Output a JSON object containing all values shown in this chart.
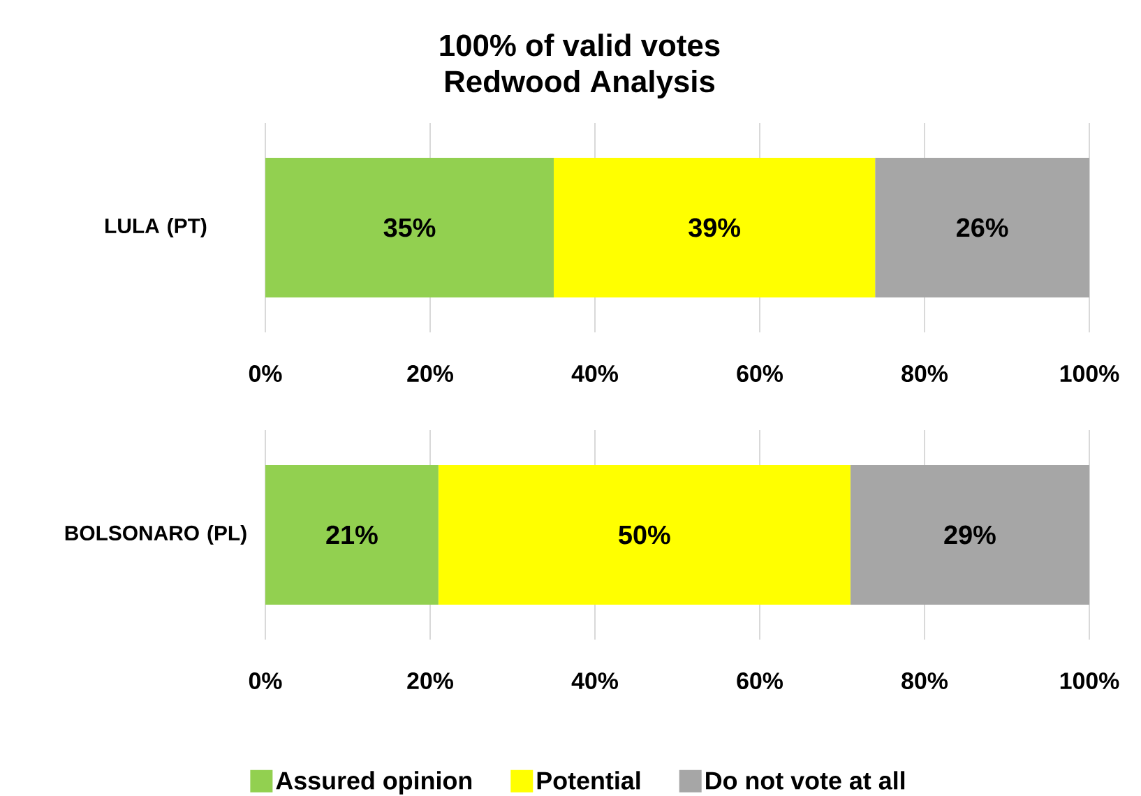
{
  "chart_data": [
    {
      "type": "bar",
      "orientation": "horizontal",
      "stacked": true,
      "title": "100% of valid votes",
      "subtitle": "Redwood Analysis",
      "categories": [
        "LULA (PT)"
      ],
      "series": [
        {
          "color": "#92d050",
          "values": [
            35
          ],
          "value_labels": [
            "35%"
          ]
        },
        {
          "color": "#ffff00",
          "values": [
            39
          ],
          "value_labels": [
            "39%"
          ]
        },
        {
          "color": "#a6a6a6",
          "values": [
            26
          ],
          "value_labels": [
            "26%"
          ]
        }
      ],
      "xlim": [
        0,
        100
      ],
      "xticks": [
        {
          "value": 0,
          "label": "0%"
        },
        {
          "value": 20,
          "label": "20%"
        },
        {
          "value": 40,
          "label": "40%"
        },
        {
          "value": 60,
          "label": "60%"
        },
        {
          "value": 80,
          "label": "80%"
        },
        {
          "value": 100,
          "label": "100%"
        }
      ],
      "grid": "x",
      "legend": false
    },
    {
      "type": "bar",
      "orientation": "horizontal",
      "stacked": true,
      "categories": [
        "BOLSONARO (PL)"
      ],
      "series": [
        {
          "name": "Assured opinion",
          "color": "#92d050",
          "values": [
            21
          ],
          "value_labels": [
            "21%"
          ]
        },
        {
          "name": "Potential",
          "color": "#ffff00",
          "values": [
            50
          ],
          "value_labels": [
            "50%"
          ]
        },
        {
          "name": "Do not vote at all",
          "color": "#a6a6a6",
          "values": [
            29
          ],
          "value_labels": [
            "29%"
          ]
        }
      ],
      "xlim": [
        0,
        100
      ],
      "xticks": [
        {
          "value": 0,
          "label": "0%"
        },
        {
          "value": 20,
          "label": "20%"
        },
        {
          "value": 40,
          "label": "40%"
        },
        {
          "value": 60,
          "label": "60%"
        },
        {
          "value": 80,
          "label": "80%"
        },
        {
          "value": 100,
          "label": "100%"
        }
      ],
      "grid": "x",
      "legend": "bottom"
    }
  ]
}
